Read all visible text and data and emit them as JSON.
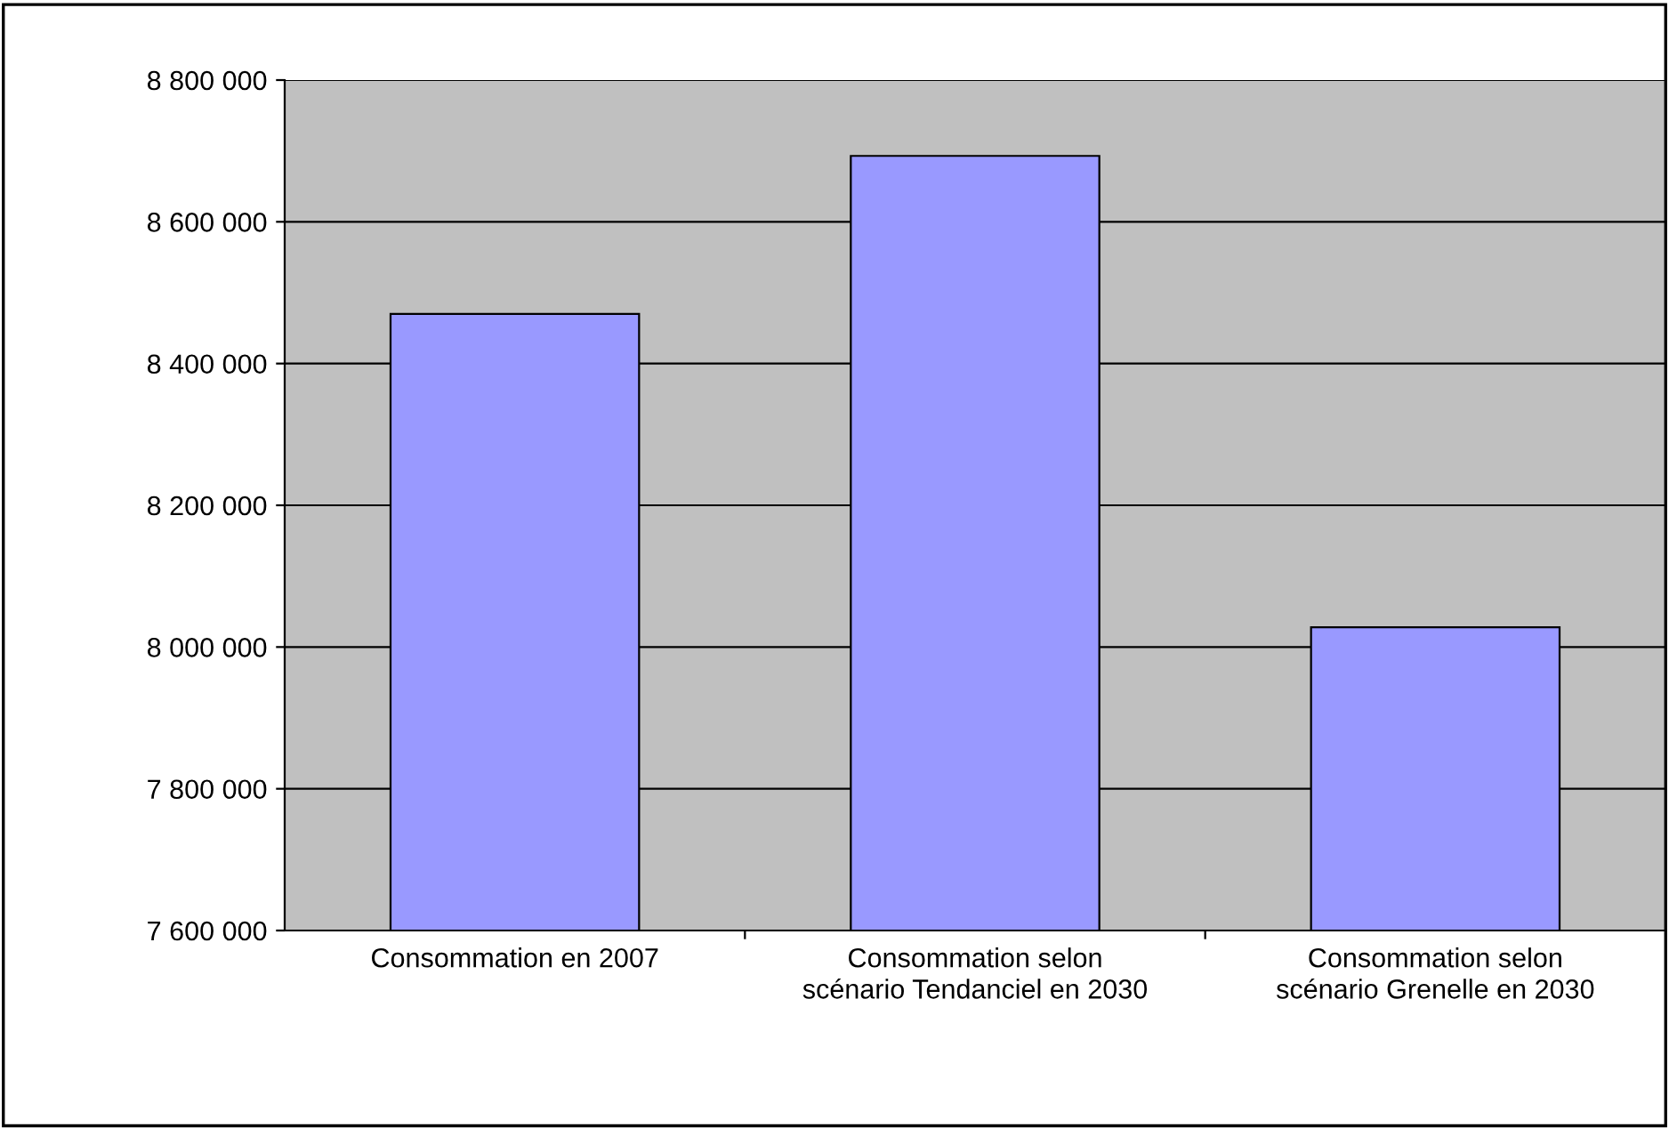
{
  "chart_data": {
    "type": "bar",
    "categories": [
      "Consommation en 2007",
      "Consommation selon scénario Tendanciel en 2030",
      "Consommation selon scénario Grenelle en 2030"
    ],
    "values": [
      8470000,
      8693000,
      8028000
    ],
    "color": "#9999ff",
    "ylim": [
      7600000,
      8800000
    ],
    "yticks": [
      {
        "value": 7600000,
        "label": "7 600 000"
      },
      {
        "value": 7800000,
        "label": "7 800 000"
      },
      {
        "value": 8000000,
        "label": "8 000 000"
      },
      {
        "value": 8200000,
        "label": "8 200 000"
      },
      {
        "value": 8400000,
        "label": "8 400 000"
      },
      {
        "value": 8600000,
        "label": "8 600 000"
      },
      {
        "value": 8800000,
        "label": "8 800 000"
      }
    ],
    "grid": "y",
    "legend": false
  }
}
